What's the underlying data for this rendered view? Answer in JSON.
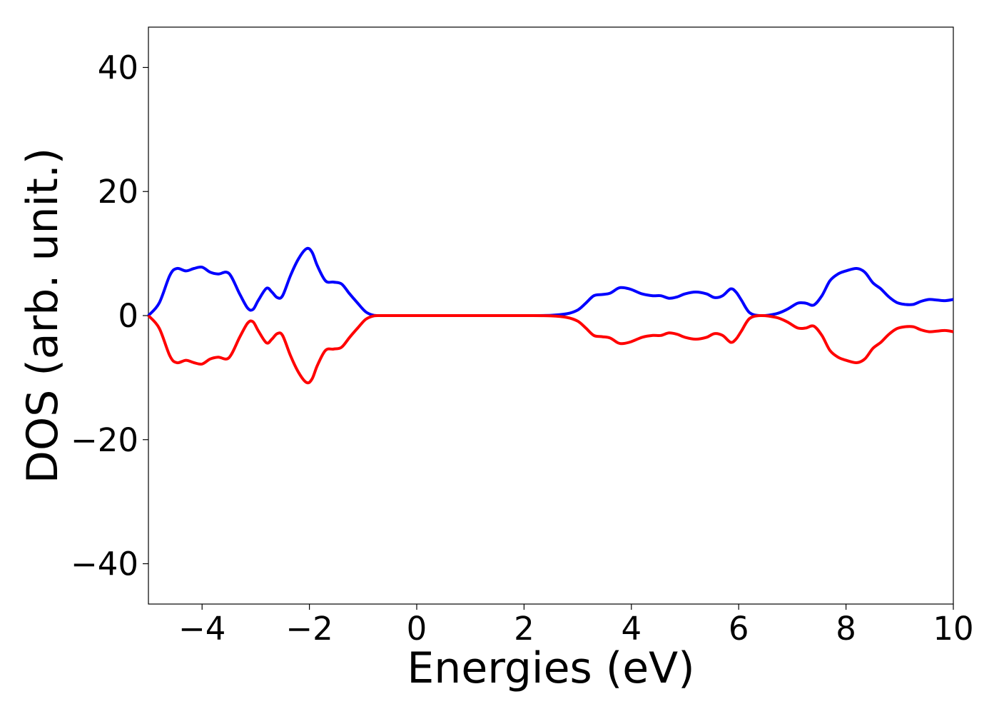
{
  "chart_data": {
    "type": "line",
    "title": "",
    "xlabel": "Energies (eV)",
    "ylabel": "DOS (arb. unit.)",
    "xlim": [
      -5,
      10
    ],
    "ylim": [
      -46.5,
      46.5
    ],
    "xticks": [
      -4,
      -2,
      0,
      2,
      4,
      6,
      8,
      10
    ],
    "xtick_labels": [
      "−4",
      "−2",
      "0",
      "2",
      "4",
      "6",
      "8",
      "10"
    ],
    "yticks": [
      40,
      20,
      0,
      -20,
      -40
    ],
    "ytick_labels": [
      "40",
      "20",
      "0",
      "−20",
      "−40"
    ],
    "grid": false,
    "legend": "none",
    "series": [
      {
        "color": "#0000ff",
        "x": [
          -5.0,
          -4.8,
          -4.6,
          -4.47,
          -4.3,
          -4.15,
          -4.0,
          -3.85,
          -3.7,
          -3.5,
          -3.3,
          -3.15,
          -3.05,
          -2.95,
          -2.8,
          -2.7,
          -2.6,
          -2.5,
          -2.35,
          -2.2,
          -2.05,
          -1.95,
          -1.85,
          -1.7,
          -1.55,
          -1.4,
          -1.25,
          -1.1,
          -0.95,
          -0.8,
          -0.65,
          -0.5,
          0.0,
          1.0,
          2.0,
          2.5,
          2.8,
          3.0,
          3.15,
          3.3,
          3.45,
          3.6,
          3.75,
          3.85,
          4.0,
          4.2,
          4.4,
          4.55,
          4.7,
          4.85,
          5.0,
          5.2,
          5.4,
          5.55,
          5.7,
          5.85,
          5.95,
          6.05,
          6.2,
          6.4,
          6.7,
          6.9,
          7.1,
          7.25,
          7.4,
          7.55,
          7.7,
          7.85,
          8.0,
          8.2,
          8.35,
          8.5,
          8.65,
          8.8,
          8.95,
          9.1,
          9.25,
          9.4,
          9.55,
          9.7,
          9.85,
          10.0
        ],
        "y": [
          0.0,
          2.0,
          6.5,
          7.6,
          7.2,
          7.6,
          7.8,
          7.0,
          6.7,
          6.8,
          3.5,
          1.2,
          1.0,
          2.5,
          4.4,
          3.8,
          2.9,
          3.2,
          6.5,
          9.2,
          10.8,
          10.2,
          8.0,
          5.6,
          5.4,
          5.1,
          3.5,
          2.0,
          0.6,
          0.05,
          0.0,
          0.0,
          0.0,
          0.0,
          0.0,
          0.05,
          0.3,
          0.9,
          2.0,
          3.2,
          3.4,
          3.6,
          4.4,
          4.5,
          4.2,
          3.5,
          3.2,
          3.2,
          2.8,
          3.0,
          3.5,
          3.8,
          3.5,
          2.9,
          3.2,
          4.3,
          3.8,
          2.5,
          0.5,
          0.0,
          0.3,
          1.0,
          2.0,
          2.0,
          1.7,
          3.2,
          5.6,
          6.7,
          7.2,
          7.6,
          7.0,
          5.3,
          4.3,
          3.0,
          2.1,
          1.8,
          1.8,
          2.3,
          2.6,
          2.5,
          2.4,
          2.6
        ]
      },
      {
        "color": "#ff0000",
        "x": [
          -5.0,
          -4.8,
          -4.6,
          -4.47,
          -4.3,
          -4.15,
          -4.0,
          -3.85,
          -3.7,
          -3.5,
          -3.3,
          -3.15,
          -3.05,
          -2.95,
          -2.8,
          -2.7,
          -2.6,
          -2.5,
          -2.35,
          -2.2,
          -2.05,
          -1.95,
          -1.85,
          -1.7,
          -1.55,
          -1.4,
          -1.25,
          -1.1,
          -0.95,
          -0.8,
          -0.65,
          -0.5,
          0.0,
          1.0,
          2.0,
          2.5,
          2.8,
          3.0,
          3.15,
          3.3,
          3.45,
          3.6,
          3.75,
          3.85,
          4.0,
          4.2,
          4.4,
          4.55,
          4.7,
          4.85,
          5.0,
          5.2,
          5.4,
          5.55,
          5.7,
          5.85,
          5.95,
          6.05,
          6.2,
          6.4,
          6.7,
          6.9,
          7.1,
          7.25,
          7.4,
          7.55,
          7.7,
          7.85,
          8.0,
          8.2,
          8.35,
          8.5,
          8.65,
          8.8,
          8.95,
          9.1,
          9.25,
          9.4,
          9.55,
          9.7,
          9.85,
          10.0
        ],
        "y": [
          0.0,
          -2.0,
          -6.5,
          -7.6,
          -7.2,
          -7.6,
          -7.8,
          -7.0,
          -6.7,
          -6.8,
          -3.5,
          -1.2,
          -1.0,
          -2.5,
          -4.4,
          -3.8,
          -2.9,
          -3.2,
          -6.5,
          -9.2,
          -10.8,
          -10.2,
          -8.0,
          -5.6,
          -5.4,
          -5.1,
          -3.5,
          -2.0,
          -0.6,
          -0.05,
          0.0,
          0.0,
          0.0,
          0.0,
          0.0,
          -0.05,
          -0.3,
          -0.9,
          -2.0,
          -3.2,
          -3.4,
          -3.6,
          -4.4,
          -4.5,
          -4.2,
          -3.5,
          -3.2,
          -3.2,
          -2.8,
          -3.0,
          -3.5,
          -3.8,
          -3.5,
          -2.9,
          -3.2,
          -4.3,
          -3.8,
          -2.5,
          -0.5,
          0.0,
          -0.3,
          -1.0,
          -2.0,
          -2.0,
          -1.7,
          -3.2,
          -5.6,
          -6.7,
          -7.2,
          -7.6,
          -7.0,
          -5.3,
          -4.3,
          -3.0,
          -2.1,
          -1.8,
          -1.8,
          -2.3,
          -2.6,
          -2.5,
          -2.4,
          -2.6
        ]
      }
    ]
  }
}
